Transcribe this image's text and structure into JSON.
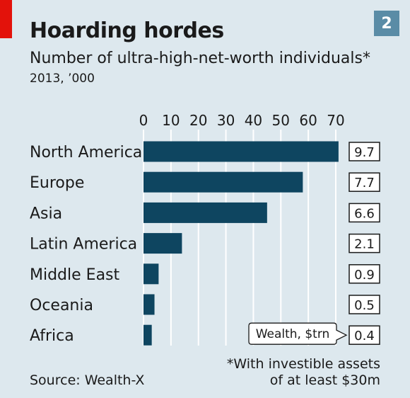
{
  "colors": {
    "background": "#dde8ee",
    "bar": "#0e4560",
    "grid": "#ffffff",
    "accent_red": "#e3120b",
    "badge": "#5a8ca6"
  },
  "header": {
    "chart_number": "2",
    "title": "Hoarding hordes",
    "subtitle": "Number of ultra-high-net-worth individuals*",
    "units": "2013, ’000"
  },
  "footer": {
    "source": "Source: Wealth-X",
    "footnote_line1": "*With investible assets",
    "footnote_line2": "of at least $30m"
  },
  "chart_data": {
    "type": "bar",
    "orientation": "horizontal",
    "title": "Hoarding hordes",
    "subtitle": "Number of ultra-high-net-worth individuals*",
    "xlim": [
      0,
      70
    ],
    "xticks": [
      0,
      10,
      20,
      30,
      40,
      50,
      60,
      70
    ],
    "grid": true,
    "categories": [
      "North America",
      "Europe",
      "Asia",
      "Latin America",
      "Middle East",
      "Oceania",
      "Africa"
    ],
    "values": [
      71,
      58,
      45,
      14,
      5.5,
      4,
      3
    ],
    "wealth_label": "Wealth, $trn",
    "wealth_values": [
      "9.7",
      "7.7",
      "6.6",
      "2.1",
      "0.9",
      "0.5",
      "0.4"
    ]
  }
}
